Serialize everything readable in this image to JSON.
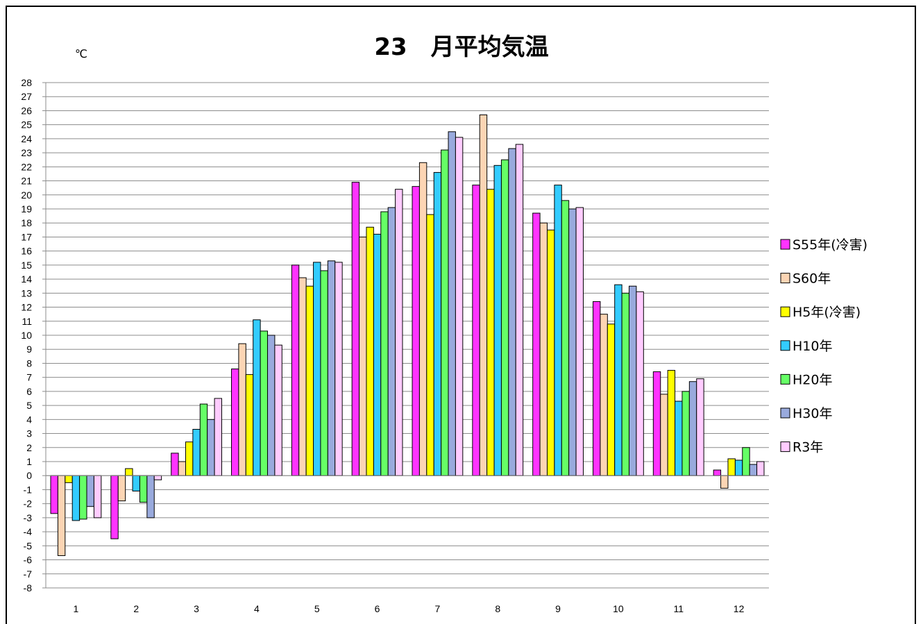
{
  "chart_data": {
    "type": "bar",
    "title": "23　月平均気温",
    "ylabel": "℃",
    "xlabel": "",
    "ylim": [
      -8,
      28
    ],
    "yticks": [
      28,
      27,
      26,
      25,
      24,
      23,
      22,
      21,
      20,
      19,
      18,
      17,
      16,
      15,
      14,
      13,
      12,
      11,
      10,
      9,
      8,
      7,
      6,
      5,
      4,
      3,
      2,
      1,
      0,
      -1,
      -2,
      -3,
      -4,
      -5,
      -6,
      -7,
      -8
    ],
    "categories": [
      "1",
      "2",
      "3",
      "4",
      "5",
      "6",
      "7",
      "8",
      "9",
      "10",
      "11",
      "12"
    ],
    "grid": true,
    "legend_position": "right",
    "series": [
      {
        "name": "S55年(冷害)",
        "color": "#ff33ff",
        "values": [
          -2.7,
          -4.5,
          1.6,
          7.6,
          15.0,
          20.9,
          20.6,
          20.7,
          18.7,
          12.4,
          7.4,
          0.4
        ]
      },
      {
        "name": "S60年",
        "color": "#fcd5b4",
        "values": [
          -5.7,
          -1.8,
          1.0,
          9.4,
          14.1,
          17.0,
          22.3,
          25.7,
          18.0,
          11.5,
          5.8,
          -0.9
        ]
      },
      {
        "name": "H5年(冷害)",
        "color": "#ffff00",
        "values": [
          -0.5,
          0.5,
          2.4,
          7.2,
          13.5,
          17.7,
          18.6,
          20.4,
          17.5,
          10.8,
          7.5,
          1.2
        ]
      },
      {
        "name": "H10年",
        "color": "#33ccff",
        "values": [
          -3.2,
          -1.1,
          3.3,
          11.1,
          15.2,
          17.2,
          21.6,
          22.1,
          20.7,
          13.6,
          5.3,
          1.1
        ]
      },
      {
        "name": "H20年",
        "color": "#66ff66",
        "values": [
          -3.1,
          -1.9,
          5.1,
          10.3,
          14.6,
          18.8,
          23.2,
          22.5,
          19.6,
          13.0,
          6.0,
          2.0
        ]
      },
      {
        "name": "H30年",
        "color": "#99aadd",
        "values": [
          -2.2,
          -3.0,
          4.0,
          10.0,
          15.3,
          19.1,
          24.5,
          23.3,
          19.0,
          13.5,
          6.7,
          0.8
        ]
      },
      {
        "name": "R3年",
        "color": "#ffccff",
        "values": [
          -3.0,
          -0.3,
          5.5,
          9.3,
          15.2,
          20.4,
          24.1,
          23.6,
          19.1,
          13.1,
          6.9,
          1.0
        ]
      }
    ]
  }
}
